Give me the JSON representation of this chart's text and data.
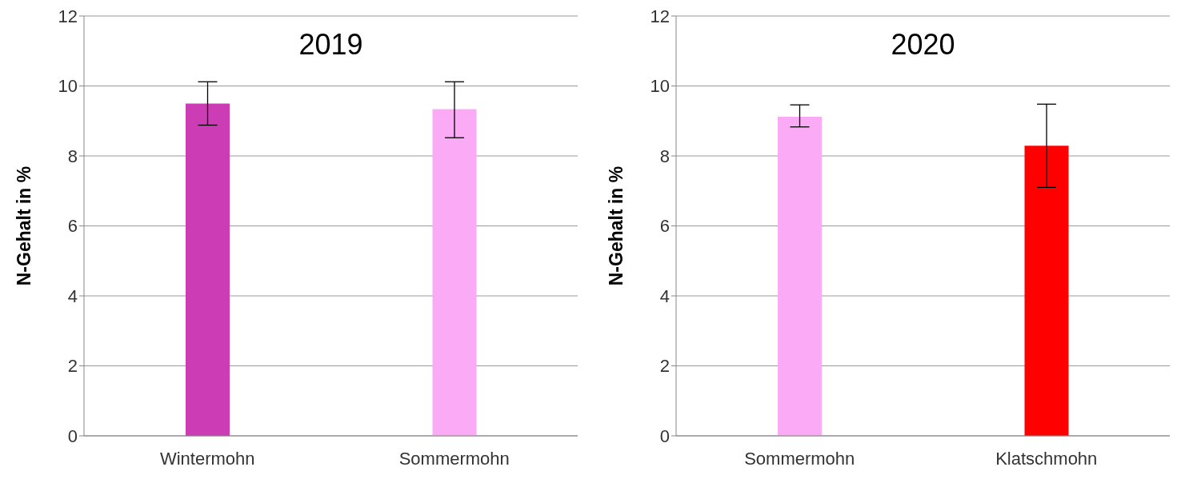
{
  "chart_data": [
    {
      "type": "bar",
      "title": "2019",
      "ylabel": "N-Gehalt in %",
      "categories": [
        "Wintermohn",
        "Sommermohn"
      ],
      "values": [
        9.5,
        9.34
      ],
      "colors": [
        "#cc3cb4",
        "#fbaaf5"
      ],
      "errors": [
        [
          8.88,
          10.12
        ],
        [
          8.52,
          10.12
        ]
      ],
      "ylim": [
        0,
        12
      ],
      "yticks": [
        0,
        2,
        4,
        6,
        8,
        10,
        12
      ],
      "grid": "y",
      "legend": false
    },
    {
      "type": "bar",
      "title": "2020",
      "ylabel": "N-Gehalt in %",
      "categories": [
        "Sommermohn",
        "Klatschmohn"
      ],
      "values": [
        9.12,
        8.29
      ],
      "colors": [
        "#fbaaf5",
        "#ff0000"
      ],
      "errors": [
        [
          8.83,
          9.46
        ],
        [
          7.1,
          9.48
        ]
      ],
      "ylim": [
        0,
        12
      ],
      "yticks": [
        0,
        2,
        4,
        6,
        8,
        10,
        12
      ],
      "grid": "y",
      "legend": false
    }
  ]
}
